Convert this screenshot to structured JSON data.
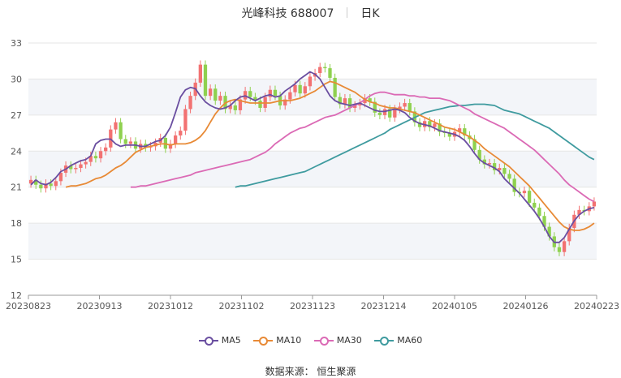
{
  "title": {
    "name": "光峰科技 688007",
    "period": "日K"
  },
  "source": "数据来源： 恒生聚源",
  "colors": {
    "up": "#f27272",
    "down": "#8fd14f",
    "ma5": "#6a4ea0",
    "ma10": "#e88a36",
    "ma30": "#db6ab5",
    "ma60": "#3f9b9f",
    "grid": "#e6e6e6",
    "band": "#f3f5f9"
  },
  "chart_data": {
    "type": "candlestick",
    "title": "光峰科技 688007 日K",
    "ylim": [
      12,
      33
    ],
    "yticks": [
      12,
      15,
      18,
      21,
      24,
      27,
      30,
      33
    ],
    "xtick_labels": [
      "20230823",
      "20230913",
      "20231012",
      "20231102",
      "20231123",
      "20231214",
      "20240105",
      "20240126",
      "20240223"
    ],
    "legend": [
      "MA5",
      "MA10",
      "MA30",
      "MA60"
    ],
    "closes": [
      21.6,
      21.2,
      20.9,
      21.3,
      21.1,
      21.5,
      22.2,
      22.8,
      22.5,
      22.6,
      22.9,
      23.1,
      23.6,
      23.4,
      24.0,
      24.3,
      25.8,
      26.4,
      25.0,
      24.6,
      24.8,
      24.2,
      24.6,
      24.3,
      24.4,
      24.7,
      25.1,
      24.2,
      24.6,
      25.3,
      25.7,
      27.5,
      28.6,
      29.7,
      31.2,
      28.6,
      29.2,
      28.2,
      28.6,
      27.5,
      27.8,
      27.4,
      28.3,
      29.0,
      28.5,
      28.2,
      27.6,
      28.5,
      29.1,
      28.6,
      27.8,
      28.3,
      28.9,
      29.5,
      28.8,
      29.4,
      30.2,
      30.5,
      31.0,
      30.9,
      30.1,
      28.5,
      27.9,
      28.4,
      27.6,
      27.8,
      28.0,
      28.4,
      28.1,
      27.2,
      27.0,
      27.5,
      26.8,
      27.5,
      27.7,
      28.0,
      27.3,
      26.4,
      26.0,
      26.5,
      26.0,
      26.3,
      25.6,
      25.5,
      25.2,
      25.6,
      25.9,
      25.3,
      25.0,
      24.1,
      23.3,
      22.9,
      23.0,
      22.4,
      22.6,
      22.1,
      21.7,
      20.6,
      20.5,
      20.7,
      19.7,
      19.3,
      18.6,
      17.7,
      16.9,
      16.0,
      15.6,
      16.5,
      17.6,
      18.7,
      19.1,
      19.0,
      19.4,
      19.8
    ],
    "ma5": [
      21.2,
      21.6,
      21.3,
      21.2,
      21.4,
      21.8,
      22.3,
      22.5,
      22.8,
      23.0,
      23.2,
      23.3,
      23.6,
      24.6,
      24.9,
      25.0,
      25.0,
      24.6,
      24.4,
      24.5,
      24.5,
      24.5,
      24.4,
      24.4,
      24.6,
      24.8,
      24.9,
      25.3,
      26.0,
      27.2,
      28.5,
      29.1,
      29.3,
      29.2,
      28.6,
      28.1,
      27.8,
      27.6,
      27.5,
      27.6,
      27.8,
      28.2,
      28.5,
      28.6,
      28.4,
      28.2,
      28.4,
      28.6,
      28.7,
      28.5,
      28.6,
      29.0,
      29.3,
      29.6,
      30.0,
      30.3,
      30.6,
      30.4,
      30.0,
      29.3,
      28.6,
      28.2,
      28.0,
      27.9,
      27.8,
      27.9,
      28.0,
      27.8,
      27.6,
      27.4,
      27.3,
      27.3,
      27.4,
      27.5,
      27.4,
      27.2,
      26.8,
      26.5,
      26.3,
      26.2,
      26.1,
      25.9,
      25.7,
      25.6,
      25.5,
      25.4,
      25.2,
      24.9,
      24.4,
      23.8,
      23.3,
      23.0,
      22.8,
      22.6,
      22.3,
      21.7,
      21.3,
      20.9,
      20.5,
      20.0,
      19.5,
      19.0,
      18.4,
      17.7,
      16.9,
      16.4,
      16.4,
      16.8,
      17.5,
      18.2,
      18.7,
      19.0,
      19.2,
      19.3
    ],
    "ma10": [
      21.0,
      21.1,
      21.1,
      21.2,
      21.3,
      21.5,
      21.7,
      21.8,
      22.0,
      22.3,
      22.6,
      22.8,
      23.1,
      23.5,
      23.9,
      24.1,
      24.3,
      24.4,
      24.5,
      24.6,
      24.6,
      24.5,
      24.6,
      24.6,
      24.6,
      24.7,
      24.9,
      25.2,
      25.7,
      26.4,
      27.1,
      27.6,
      28.0,
      28.2,
      28.3,
      28.2,
      28.1,
      28.0,
      28.0,
      28.0,
      28.0,
      28.0,
      28.1,
      28.2,
      28.2,
      28.2,
      28.3,
      28.4,
      28.6,
      28.8,
      29.0,
      29.3,
      29.6,
      29.8,
      29.7,
      29.5,
      29.3,
      29.1,
      28.9,
      28.6,
      28.3,
      28.1,
      28.0,
      27.8,
      27.7,
      27.6,
      27.6,
      27.5,
      27.4,
      27.3,
      27.2,
      27.0,
      26.8,
      26.6,
      26.4,
      26.2,
      26.0,
      25.9,
      25.8,
      25.6,
      25.4,
      25.2,
      24.9,
      24.6,
      24.2,
      23.9,
      23.6,
      23.3,
      23.0,
      22.7,
      22.3,
      21.9,
      21.5,
      21.1,
      20.6,
      20.1,
      19.6,
      19.1,
      18.6,
      18.1,
      17.7,
      17.5,
      17.4,
      17.4,
      17.5,
      17.7,
      18.0
    ],
    "ma30": [
      21.0,
      21.0,
      21.1,
      21.1,
      21.2,
      21.3,
      21.4,
      21.5,
      21.6,
      21.7,
      21.8,
      21.9,
      22.0,
      22.2,
      22.3,
      22.4,
      22.5,
      22.6,
      22.7,
      22.8,
      22.9,
      23.0,
      23.1,
      23.2,
      23.3,
      23.5,
      23.7,
      23.9,
      24.2,
      24.6,
      24.9,
      25.2,
      25.5,
      25.7,
      25.9,
      26.0,
      26.2,
      26.4,
      26.6,
      26.8,
      26.9,
      27.0,
      27.2,
      27.4,
      27.6,
      27.8,
      28.0,
      28.3,
      28.6,
      28.8,
      28.9,
      28.9,
      28.8,
      28.7,
      28.7,
      28.7,
      28.6,
      28.6,
      28.5,
      28.5,
      28.4,
      28.4,
      28.4,
      28.3,
      28.2,
      28.0,
      27.8,
      27.6,
      27.4,
      27.1,
      26.9,
      26.7,
      26.5,
      26.3,
      26.1,
      25.9,
      25.6,
      25.3,
      25.0,
      24.7,
      24.4,
      24.1,
      23.7,
      23.3,
      22.9,
      22.5,
      22.1,
      21.6,
      21.2,
      20.9,
      20.6,
      20.3,
      20.0,
      19.8
    ],
    "ma60": [
      21.0,
      21.1,
      21.1,
      21.2,
      21.3,
      21.4,
      21.5,
      21.6,
      21.7,
      21.8,
      21.9,
      22.0,
      22.1,
      22.2,
      22.3,
      22.5,
      22.7,
      22.9,
      23.1,
      23.3,
      23.5,
      23.7,
      23.9,
      24.1,
      24.3,
      24.5,
      24.7,
      24.9,
      25.1,
      25.3,
      25.5,
      25.8,
      26.0,
      26.2,
      26.4,
      26.6,
      26.8,
      27.0,
      27.2,
      27.3,
      27.4,
      27.5,
      27.6,
      27.7,
      27.75,
      27.8,
      27.8,
      27.85,
      27.9,
      27.9,
      27.9,
      27.85,
      27.8,
      27.6,
      27.4,
      27.3,
      27.2,
      27.1,
      26.9,
      26.7,
      26.5,
      26.3,
      26.1,
      25.9,
      25.6,
      25.3,
      25.0,
      24.7,
      24.4,
      24.1,
      23.8,
      23.5,
      23.3
    ]
  }
}
